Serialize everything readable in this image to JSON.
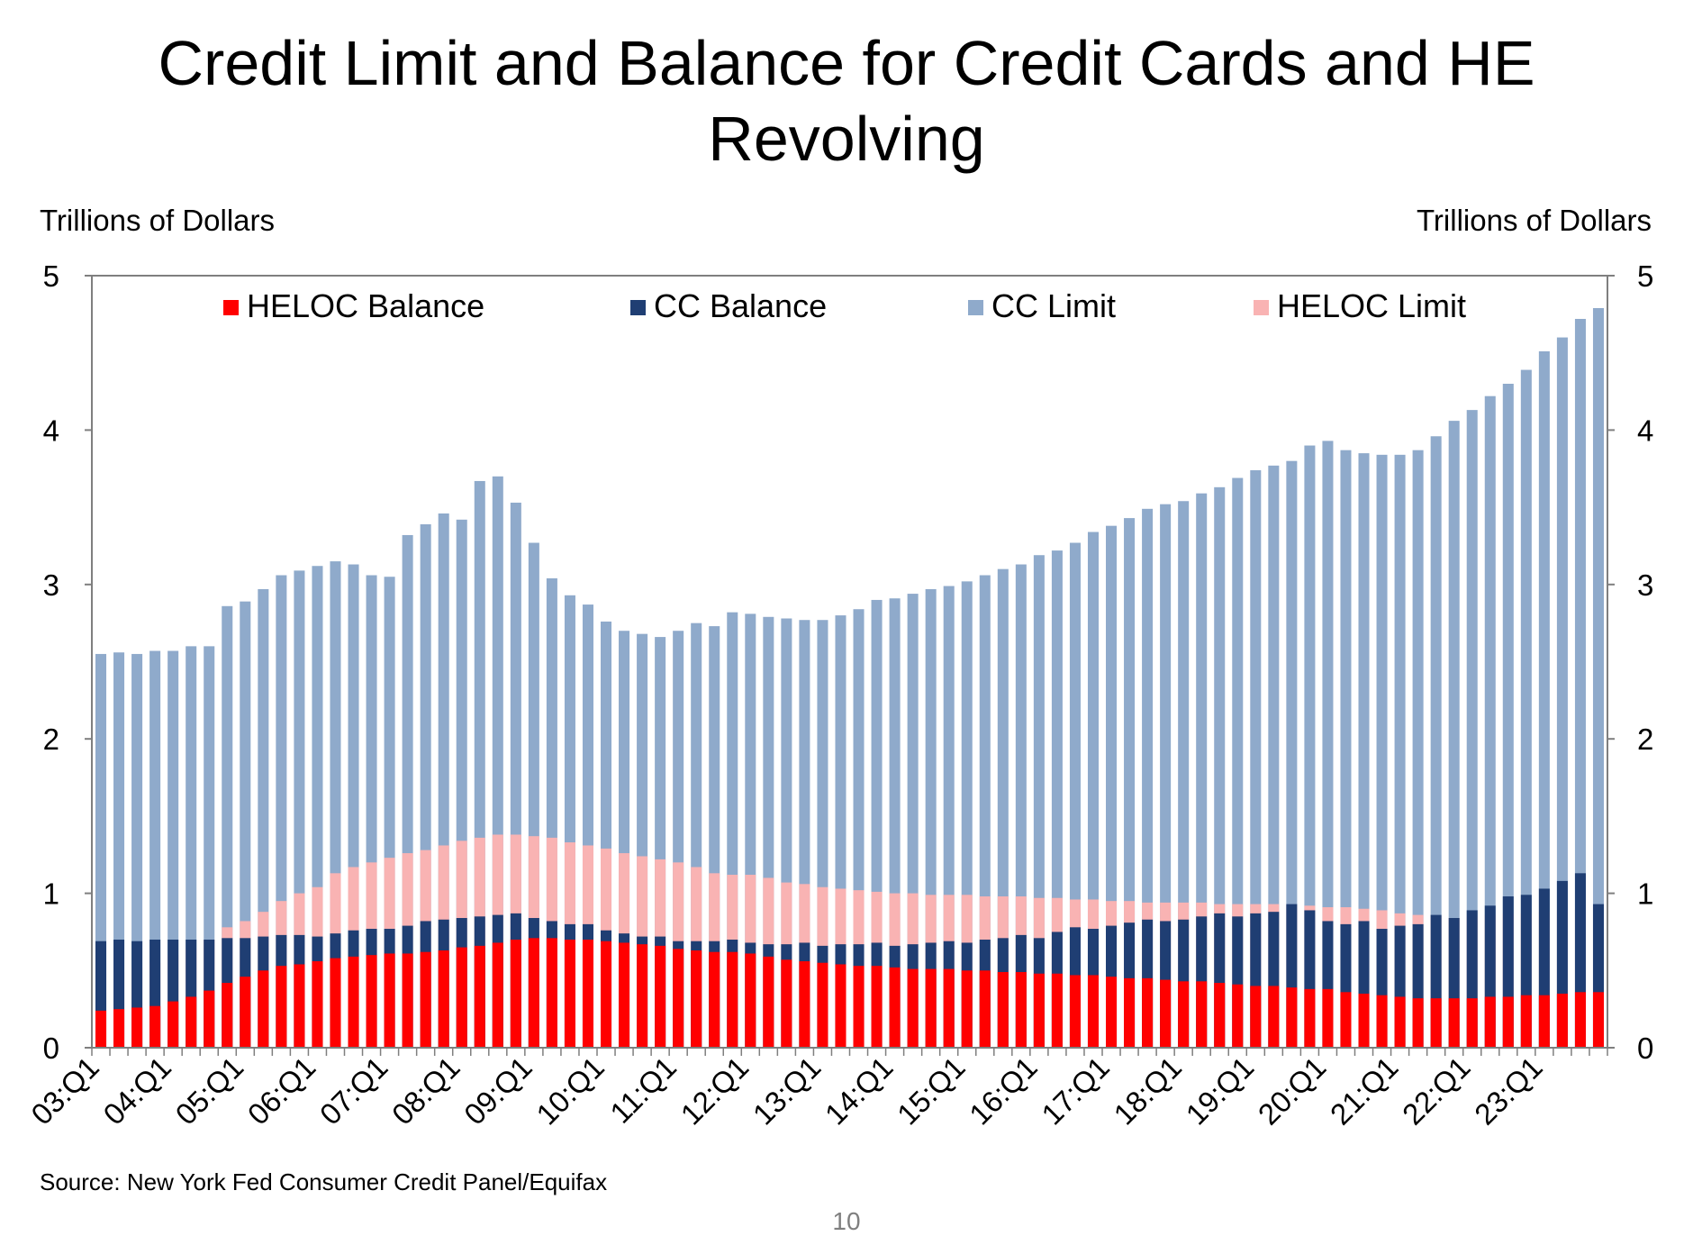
{
  "title": "Credit Limit and Balance for Credit Cards and HE Revolving",
  "page_number": "10",
  "source": "Source: New York Fed Consumer Credit Panel/Equifax",
  "colors": {
    "heloc_balance": "#ff0000",
    "cc_balance": "#1f3e73",
    "cc_limit": "#8faacb",
    "heloc_limit": "#f9b3b3"
  },
  "chart_data": {
    "type": "bar",
    "title": "Credit Limit and Balance for Credit Cards and HE Revolving",
    "ylabel_left": "Trillions of Dollars",
    "ylabel_right": "Trillions of Dollars",
    "ylim": [
      0,
      5
    ],
    "yticks": [
      0,
      1,
      2,
      3,
      4,
      5
    ],
    "grid": false,
    "legend_position": "top",
    "legend": [
      "HELOC Balance",
      "CC Balance",
      "CC Limit",
      "HELOC Limit"
    ],
    "x_tick_labels": [
      "03:Q1",
      "04:Q1",
      "05:Q1",
      "06:Q1",
      "07:Q1",
      "08:Q1",
      "09:Q1",
      "10:Q1",
      "11:Q1",
      "12:Q1",
      "13:Q1",
      "14:Q1",
      "15:Q1",
      "16:Q1",
      "17:Q1",
      "18:Q1",
      "19:Q1",
      "20:Q1",
      "21:Q1",
      "22:Q1",
      "23:Q1"
    ],
    "categories": [
      "03:Q1",
      "03:Q2",
      "03:Q3",
      "03:Q4",
      "04:Q1",
      "04:Q2",
      "04:Q3",
      "04:Q4",
      "05:Q1",
      "05:Q2",
      "05:Q3",
      "05:Q4",
      "06:Q1",
      "06:Q2",
      "06:Q3",
      "06:Q4",
      "07:Q1",
      "07:Q2",
      "07:Q3",
      "07:Q4",
      "08:Q1",
      "08:Q2",
      "08:Q3",
      "08:Q4",
      "09:Q1",
      "09:Q2",
      "09:Q3",
      "09:Q4",
      "10:Q1",
      "10:Q2",
      "10:Q3",
      "10:Q4",
      "11:Q1",
      "11:Q2",
      "11:Q3",
      "11:Q4",
      "12:Q1",
      "12:Q2",
      "12:Q3",
      "12:Q4",
      "13:Q1",
      "13:Q2",
      "13:Q3",
      "13:Q4",
      "14:Q1",
      "14:Q2",
      "14:Q3",
      "14:Q4",
      "15:Q1",
      "15:Q2",
      "15:Q3",
      "15:Q4",
      "16:Q1",
      "16:Q2",
      "16:Q3",
      "16:Q4",
      "17:Q1",
      "17:Q2",
      "17:Q3",
      "17:Q4",
      "18:Q1",
      "18:Q2",
      "18:Q3",
      "18:Q4",
      "19:Q1",
      "19:Q2",
      "19:Q3",
      "19:Q4",
      "20:Q1",
      "20:Q2",
      "20:Q3",
      "20:Q4",
      "21:Q1",
      "21:Q2",
      "21:Q3",
      "21:Q4",
      "22:Q1",
      "22:Q2",
      "22:Q3",
      "22:Q4",
      "23:Q1",
      "23:Q2",
      "23:Q3",
      "23:Q4"
    ],
    "series": [
      {
        "name": "CC Limit",
        "values": [
          2.55,
          2.56,
          2.55,
          2.57,
          2.57,
          2.6,
          2.6,
          2.86,
          2.89,
          2.97,
          3.06,
          3.09,
          3.12,
          3.15,
          3.13,
          3.06,
          3.05,
          3.32,
          3.39,
          3.46,
          3.42,
          3.67,
          3.7,
          3.53,
          3.27,
          3.04,
          2.93,
          2.87,
          2.76,
          2.7,
          2.68,
          2.66,
          2.7,
          2.75,
          2.73,
          2.82,
          2.81,
          2.79,
          2.78,
          2.77,
          2.77,
          2.8,
          2.84,
          2.9,
          2.91,
          2.94,
          2.97,
          2.99,
          3.02,
          3.06,
          3.1,
          3.13,
          3.19,
          3.22,
          3.27,
          3.34,
          3.38,
          3.43,
          3.49,
          3.52,
          3.54,
          3.59,
          3.63,
          3.69,
          3.74,
          3.77,
          3.8,
          3.9,
          3.93,
          3.87,
          3.85,
          3.84,
          3.84,
          3.87,
          3.96,
          4.06,
          4.13,
          4.22,
          4.3,
          4.39,
          4.51,
          4.6,
          4.72,
          4.79
        ]
      },
      {
        "name": "HELOC Limit",
        "values": [
          0.48,
          0.49,
          0.52,
          0.55,
          0.6,
          0.64,
          0.7,
          0.78,
          0.82,
          0.88,
          0.95,
          1.0,
          1.04,
          1.13,
          1.17,
          1.2,
          1.23,
          1.26,
          1.28,
          1.31,
          1.34,
          1.36,
          1.38,
          1.38,
          1.37,
          1.36,
          1.33,
          1.31,
          1.29,
          1.26,
          1.24,
          1.22,
          1.2,
          1.17,
          1.13,
          1.12,
          1.12,
          1.1,
          1.07,
          1.06,
          1.04,
          1.03,
          1.02,
          1.01,
          1.0,
          1.0,
          0.99,
          0.99,
          0.99,
          0.98,
          0.98,
          0.98,
          0.97,
          0.97,
          0.96,
          0.96,
          0.95,
          0.95,
          0.94,
          0.94,
          0.94,
          0.94,
          0.93,
          0.93,
          0.93,
          0.93,
          0.92,
          0.92,
          0.91,
          0.91,
          0.9,
          0.89,
          0.87,
          0.86,
          0.85,
          0.84,
          0.85,
          0.86,
          0.87,
          0.87,
          0.88,
          0.89,
          0.9,
          0.92
        ]
      },
      {
        "name": "CC Balance",
        "values": [
          0.69,
          0.7,
          0.69,
          0.7,
          0.7,
          0.7,
          0.7,
          0.71,
          0.71,
          0.72,
          0.73,
          0.73,
          0.72,
          0.74,
          0.76,
          0.77,
          0.77,
          0.79,
          0.82,
          0.83,
          0.84,
          0.85,
          0.86,
          0.87,
          0.84,
          0.82,
          0.8,
          0.8,
          0.76,
          0.74,
          0.72,
          0.72,
          0.69,
          0.69,
          0.69,
          0.7,
          0.68,
          0.67,
          0.67,
          0.68,
          0.66,
          0.67,
          0.67,
          0.68,
          0.66,
          0.67,
          0.68,
          0.69,
          0.68,
          0.7,
          0.71,
          0.73,
          0.71,
          0.75,
          0.78,
          0.77,
          0.79,
          0.81,
          0.83,
          0.82,
          0.83,
          0.85,
          0.87,
          0.85,
          0.87,
          0.88,
          0.93,
          0.89,
          0.82,
          0.8,
          0.82,
          0.77,
          0.79,
          0.8,
          0.86,
          0.84,
          0.89,
          0.92,
          0.98,
          0.99,
          1.03,
          1.08,
          1.13,
          0.93
        ]
      },
      {
        "name": "HELOC Balance",
        "values": [
          0.24,
          0.25,
          0.26,
          0.27,
          0.3,
          0.33,
          0.37,
          0.42,
          0.46,
          0.5,
          0.53,
          0.54,
          0.56,
          0.58,
          0.59,
          0.6,
          0.61,
          0.61,
          0.62,
          0.63,
          0.65,
          0.66,
          0.68,
          0.7,
          0.71,
          0.71,
          0.7,
          0.7,
          0.69,
          0.68,
          0.67,
          0.66,
          0.64,
          0.63,
          0.62,
          0.62,
          0.61,
          0.59,
          0.57,
          0.56,
          0.55,
          0.54,
          0.53,
          0.53,
          0.52,
          0.51,
          0.51,
          0.51,
          0.5,
          0.5,
          0.49,
          0.49,
          0.48,
          0.48,
          0.47,
          0.47,
          0.46,
          0.45,
          0.45,
          0.44,
          0.43,
          0.43,
          0.42,
          0.41,
          0.4,
          0.4,
          0.39,
          0.38,
          0.38,
          0.36,
          0.35,
          0.34,
          0.33,
          0.32,
          0.32,
          0.32,
          0.32,
          0.33,
          0.33,
          0.34,
          0.34,
          0.35,
          0.36,
          0.36
        ]
      }
    ]
  }
}
